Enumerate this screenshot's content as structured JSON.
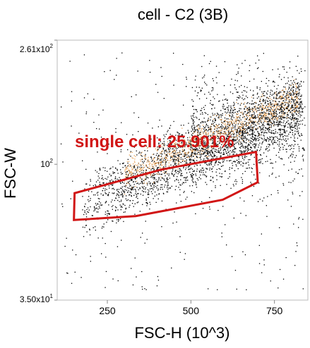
{
  "chart_data": {
    "type": "scatter",
    "title": "cell - C2 (3B)",
    "xlabel": "FSC-H (10^3)",
    "ylabel": "FSC-W",
    "x_scale": "linear",
    "y_scale": "log",
    "xlim": [
      100,
      850
    ],
    "ylim": [
      35,
      261
    ],
    "x_ticks": [
      {
        "value": 250,
        "label": "250"
      },
      {
        "value": 500,
        "label": "500"
      },
      {
        "value": 750,
        "label": "750"
      }
    ],
    "y_ticks": [
      {
        "value": 261,
        "label": "2.61x10",
        "exp": "2"
      },
      {
        "value": 100,
        "label": "10",
        "exp": "2"
      },
      {
        "value": 35,
        "label": "3.50x10",
        "exp": "1"
      }
    ],
    "point_color": "#000000",
    "density_color": "#e8a35a",
    "gate": {
      "name": "single cell",
      "label": "single cell: 25.901%",
      "color": "#d11515",
      "vertices": [
        [
          152,
          80
        ],
        [
          150,
          65
        ],
        [
          335,
          67
        ],
        [
          595,
          76
        ],
        [
          700,
          87
        ],
        [
          695,
          110
        ],
        [
          412,
          96
        ],
        [
          152,
          80
        ]
      ]
    }
  }
}
